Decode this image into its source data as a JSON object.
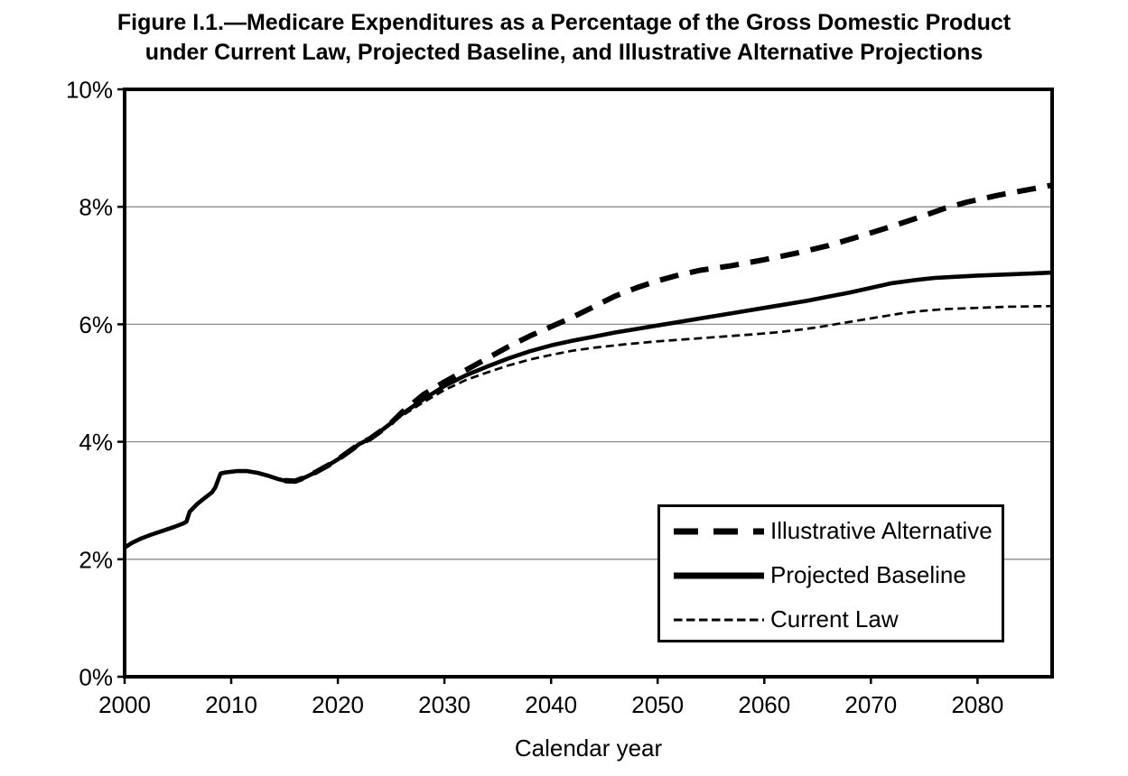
{
  "chart_data": {
    "type": "line",
    "title": "Figure I.1.—Medicare Expenditures as a Percentage of the Gross Domestic Product under Current Law, Projected Baseline, and Illustrative Alternative Projections",
    "title_lines": [
      "Figure I.1.—Medicare Expenditures as a Percentage of the Gross Domestic Product",
      "under Current Law, Projected Baseline, and Illustrative Alternative Projections"
    ],
    "xlabel": "Calendar year",
    "ylabel": "",
    "xlim": [
      2000,
      2087
    ],
    "ylim": [
      0,
      10
    ],
    "x_ticks": [
      {
        "value": 2000,
        "label": "2000"
      },
      {
        "value": 2010,
        "label": "2010"
      },
      {
        "value": 2020,
        "label": "2020"
      },
      {
        "value": 2030,
        "label": "2030"
      },
      {
        "value": 2040,
        "label": "2040"
      },
      {
        "value": 2050,
        "label": "2050"
      },
      {
        "value": 2060,
        "label": "2060"
      },
      {
        "value": 2070,
        "label": "2070"
      },
      {
        "value": 2080,
        "label": "2080"
      }
    ],
    "y_ticks": [
      {
        "value": 0,
        "label": "0%"
      },
      {
        "value": 2,
        "label": "2%"
      },
      {
        "value": 4,
        "label": "4%"
      },
      {
        "value": 6,
        "label": "6%"
      },
      {
        "value": 8,
        "label": "8%"
      },
      {
        "value": 10,
        "label": "10%"
      }
    ],
    "gridlines_y": [
      2,
      4,
      6,
      8
    ],
    "grid_on": true,
    "line_color": "#000000",
    "gridline_color": "#8a8a8a",
    "legend": {
      "position": "bottom-right",
      "entries": [
        {
          "label": "Illustrative Alternative",
          "style": "thick-dashed"
        },
        {
          "label": "Projected Baseline",
          "style": "thick-solid"
        },
        {
          "label": "Current Law",
          "style": "thin-dashed"
        }
      ]
    },
    "series": [
      {
        "name": "Current Law",
        "style": "thin-dashed",
        "points": [
          [
            2015,
            3.34
          ],
          [
            2016,
            3.33
          ],
          [
            2017,
            3.4
          ],
          [
            2018,
            3.49
          ],
          [
            2019,
            3.59
          ],
          [
            2020,
            3.7
          ],
          [
            2021,
            3.83
          ],
          [
            2022,
            3.96
          ],
          [
            2023,
            4.05
          ],
          [
            2024,
            4.18
          ],
          [
            2025,
            4.32
          ],
          [
            2026,
            4.44
          ],
          [
            2028,
            4.67
          ],
          [
            2030,
            4.88
          ],
          [
            2032,
            5.05
          ],
          [
            2034,
            5.18
          ],
          [
            2036,
            5.3
          ],
          [
            2038,
            5.4
          ],
          [
            2040,
            5.48
          ],
          [
            2042,
            5.55
          ],
          [
            2044,
            5.6
          ],
          [
            2047,
            5.66
          ],
          [
            2050,
            5.71
          ],
          [
            2053,
            5.75
          ],
          [
            2056,
            5.79
          ],
          [
            2059,
            5.83
          ],
          [
            2061,
            5.86
          ],
          [
            2063,
            5.9
          ],
          [
            2065,
            5.95
          ],
          [
            2067,
            6.01
          ],
          [
            2069,
            6.07
          ],
          [
            2071,
            6.13
          ],
          [
            2073,
            6.19
          ],
          [
            2075,
            6.23
          ],
          [
            2077,
            6.26
          ],
          [
            2080,
            6.28
          ],
          [
            2083,
            6.3
          ],
          [
            2087,
            6.31
          ]
        ]
      },
      {
        "name": "Projected Baseline",
        "style": "thick-solid",
        "points": [
          [
            2000,
            2.2
          ],
          [
            2000.7,
            2.28
          ],
          [
            2001.5,
            2.35
          ],
          [
            2002.5,
            2.42
          ],
          [
            2003.5,
            2.48
          ],
          [
            2004.5,
            2.54
          ],
          [
            2005.5,
            2.61
          ],
          [
            2005.8,
            2.64
          ],
          [
            2006.1,
            2.81
          ],
          [
            2006.8,
            2.94
          ],
          [
            2007.5,
            3.04
          ],
          [
            2008.2,
            3.14
          ],
          [
            2008.5,
            3.22
          ],
          [
            2009,
            3.46
          ],
          [
            2009.5,
            3.48
          ],
          [
            2010.5,
            3.5
          ],
          [
            2011.5,
            3.5
          ],
          [
            2012.5,
            3.47
          ],
          [
            2013.5,
            3.42
          ],
          [
            2014.5,
            3.36
          ],
          [
            2015,
            3.34
          ],
          [
            2016,
            3.33
          ],
          [
            2017,
            3.4
          ],
          [
            2018,
            3.49
          ],
          [
            2019,
            3.59
          ],
          [
            2020,
            3.7
          ],
          [
            2021,
            3.83
          ],
          [
            2022,
            3.96
          ],
          [
            2023,
            4.05
          ],
          [
            2024,
            4.18
          ],
          [
            2025,
            4.32
          ],
          [
            2026,
            4.47
          ],
          [
            2028,
            4.72
          ],
          [
            2030,
            4.95
          ],
          [
            2032,
            5.13
          ],
          [
            2034,
            5.28
          ],
          [
            2036,
            5.42
          ],
          [
            2038,
            5.54
          ],
          [
            2040,
            5.64
          ],
          [
            2042,
            5.72
          ],
          [
            2044,
            5.79
          ],
          [
            2046,
            5.86
          ],
          [
            2048,
            5.92
          ],
          [
            2050,
            5.98
          ],
          [
            2052,
            6.04
          ],
          [
            2054,
            6.1
          ],
          [
            2056,
            6.16
          ],
          [
            2058,
            6.22
          ],
          [
            2060,
            6.28
          ],
          [
            2062,
            6.34
          ],
          [
            2064,
            6.4
          ],
          [
            2066,
            6.47
          ],
          [
            2068,
            6.54
          ],
          [
            2070,
            6.62
          ],
          [
            2072,
            6.7
          ],
          [
            2074,
            6.75
          ],
          [
            2076,
            6.79
          ],
          [
            2078,
            6.81
          ],
          [
            2080,
            6.83
          ],
          [
            2083,
            6.85
          ],
          [
            2087,
            6.88
          ]
        ]
      },
      {
        "name": "Illustrative Alternative",
        "style": "thick-dashed",
        "points": [
          [
            2015,
            3.34
          ],
          [
            2016,
            3.33
          ],
          [
            2017,
            3.4
          ],
          [
            2018,
            3.49
          ],
          [
            2019,
            3.59
          ],
          [
            2020,
            3.7
          ],
          [
            2021,
            3.83
          ],
          [
            2022,
            3.96
          ],
          [
            2023,
            4.05
          ],
          [
            2024,
            4.18
          ],
          [
            2025,
            4.32
          ],
          [
            2026,
            4.5
          ],
          [
            2028,
            4.8
          ],
          [
            2030,
            5.02
          ],
          [
            2032,
            5.22
          ],
          [
            2034,
            5.42
          ],
          [
            2036,
            5.62
          ],
          [
            2038,
            5.8
          ],
          [
            2040,
            5.96
          ],
          [
            2042,
            6.12
          ],
          [
            2044,
            6.3
          ],
          [
            2046,
            6.48
          ],
          [
            2048,
            6.62
          ],
          [
            2050,
            6.74
          ],
          [
            2052,
            6.84
          ],
          [
            2054,
            6.92
          ],
          [
            2057,
            7.0
          ],
          [
            2060,
            7.1
          ],
          [
            2063,
            7.21
          ],
          [
            2066,
            7.34
          ],
          [
            2069,
            7.5
          ],
          [
            2072,
            7.67
          ],
          [
            2075,
            7.85
          ],
          [
            2077,
            7.98
          ],
          [
            2079,
            8.08
          ],
          [
            2082,
            8.2
          ],
          [
            2085,
            8.3
          ],
          [
            2087,
            8.37
          ]
        ]
      }
    ]
  }
}
